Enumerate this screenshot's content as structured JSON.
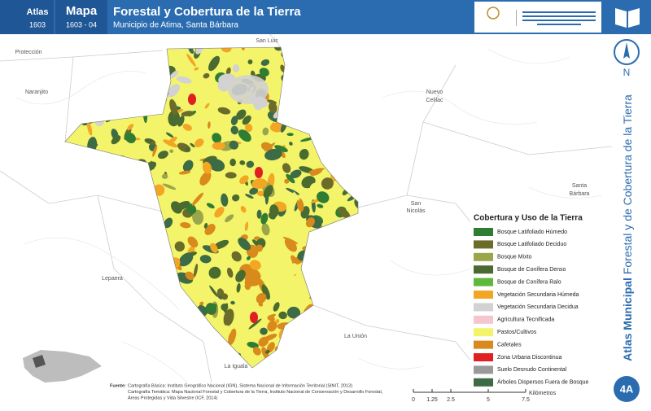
{
  "header": {
    "atlas_label": "Atlas",
    "atlas_code": "1603",
    "map_label": "Mapa",
    "map_code": "1603 - 04",
    "title": "Forestal y Cobertura de la Tierra",
    "subtitle": "Municipio de Atima, Santa Bárbara"
  },
  "places": [
    "Protección",
    "San Luis",
    "Naranjito",
    "Nuevo",
    "Celilac",
    "San",
    "Nicolás",
    "Santa",
    "Bárbara",
    "Lepaera",
    "La Unión",
    "La Iguala"
  ],
  "legend": {
    "title": "Cobertura y Uso de la Tierra",
    "items": [
      {
        "label": "Bosque Latifoliado Húmedo",
        "color": "#2f7d32"
      },
      {
        "label": "Bosque Latifoliado Deciduo",
        "color": "#6b6b2a"
      },
      {
        "label": "Bosque Mixto",
        "color": "#9aa64a"
      },
      {
        "label": "Bosque de Conífera Denso",
        "color": "#4a6b2f"
      },
      {
        "label": "Bosque de Conífera Ralo",
        "color": "#5fb83a"
      },
      {
        "label": "Vegetación Secundaria Húmeda",
        "color": "#f2a623"
      },
      {
        "label": "Vegetación Secundaria Decidua",
        "color": "#d2d2d2"
      },
      {
        "label": "Agricultura Tecnificada",
        "color": "#f6c6cf"
      },
      {
        "label": "Pastos/Cultivos",
        "color": "#f4f46a"
      },
      {
        "label": "Cafetales",
        "color": "#d88a1c"
      },
      {
        "label": "Zona Urbana Discontinua",
        "color": "#e02020"
      },
      {
        "label": "Suelo Desnudo Continental",
        "color": "#9a9a9a"
      },
      {
        "label": "Árboles Dispersos Fuera de Bosque",
        "color": "#3d6b45"
      }
    ]
  },
  "side": {
    "bold": "Atlas Municipal",
    "rest": "Forestal y de Cobertura de la Tierra",
    "north": "N",
    "page": "4A"
  },
  "source": {
    "label": "Fuente:",
    "lines": [
      "Cartografía Básica: Instituto Geográfico Nacional (IGN), Sistema Nacional de Información Territorial (SINIT, 2013)",
      "Cartografía Temática: Mapa Nacional Forestal y Cobertura de la Tierra, Instituto Nacional de Conservación y Desarrollo Forestal,",
      "Áreas Protegidas y Vida Silvestre (ICF, 2014)"
    ]
  },
  "scale": {
    "ticks": [
      0,
      1.25,
      2.5,
      5,
      7.5
    ],
    "unit": "Kilómetros"
  }
}
